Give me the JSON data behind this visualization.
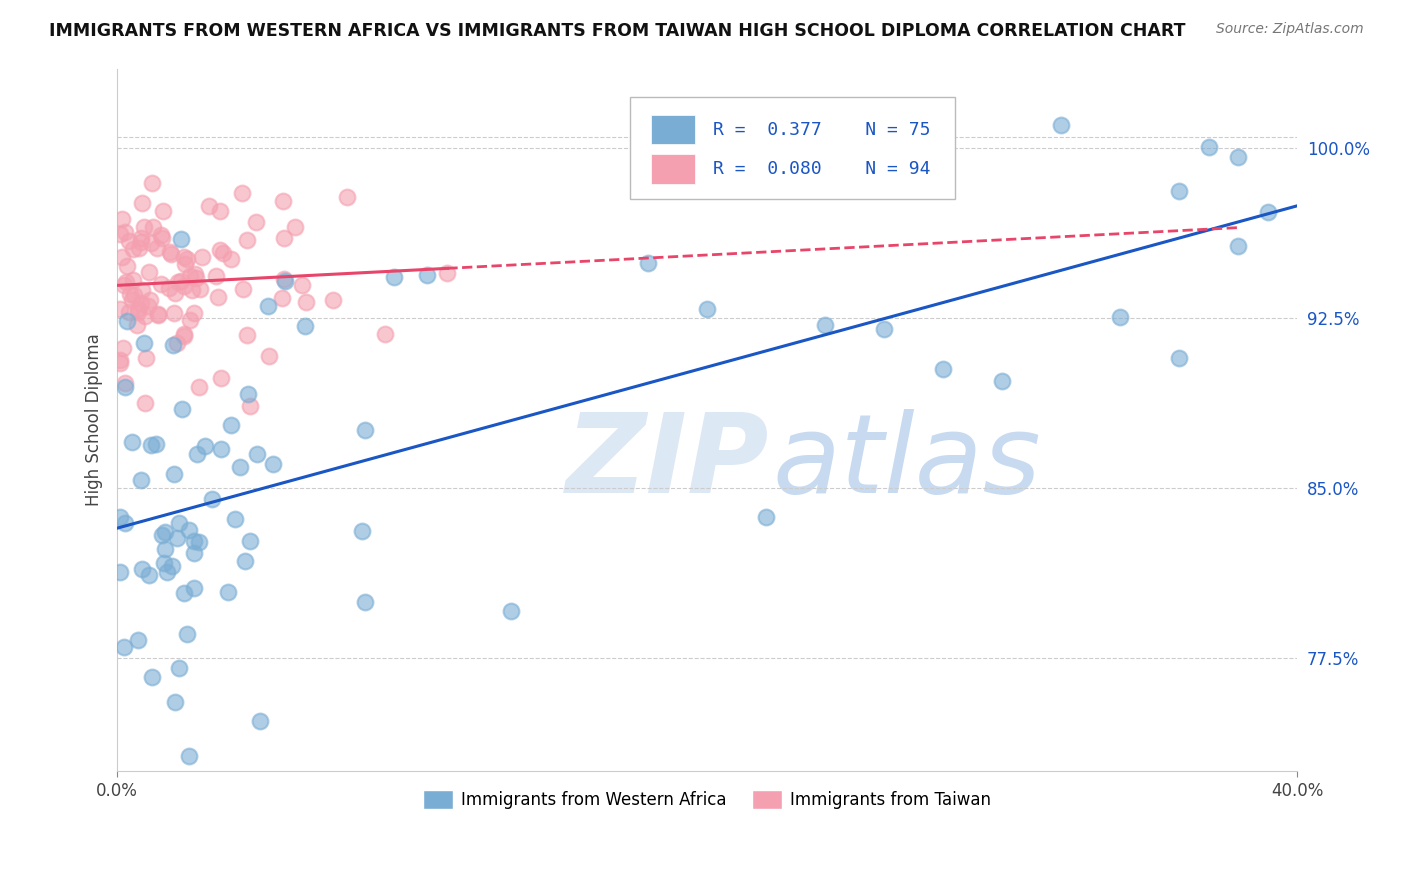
{
  "title": "IMMIGRANTS FROM WESTERN AFRICA VS IMMIGRANTS FROM TAIWAN HIGH SCHOOL DIPLOMA CORRELATION CHART",
  "source": "Source: ZipAtlas.com",
  "ylabel": "High School Diploma",
  "ytick_labels": [
    "100.0%",
    "92.5%",
    "85.0%",
    "77.5%"
  ],
  "ytick_values": [
    1.0,
    0.925,
    0.85,
    0.775
  ],
  "xlim": [
    0.0,
    0.4
  ],
  "ylim": [
    0.725,
    1.035
  ],
  "blue_color": "#7aadd4",
  "pink_color": "#f4a0b0",
  "blue_line_color": "#1a56c4",
  "pink_line_color": "#e8456a",
  "legend_text_color": "#1a56c4",
  "background_color": "#FFFFFF",
  "watermark_color": "#dde8f5",
  "watermark_color2": "#c8daf0"
}
